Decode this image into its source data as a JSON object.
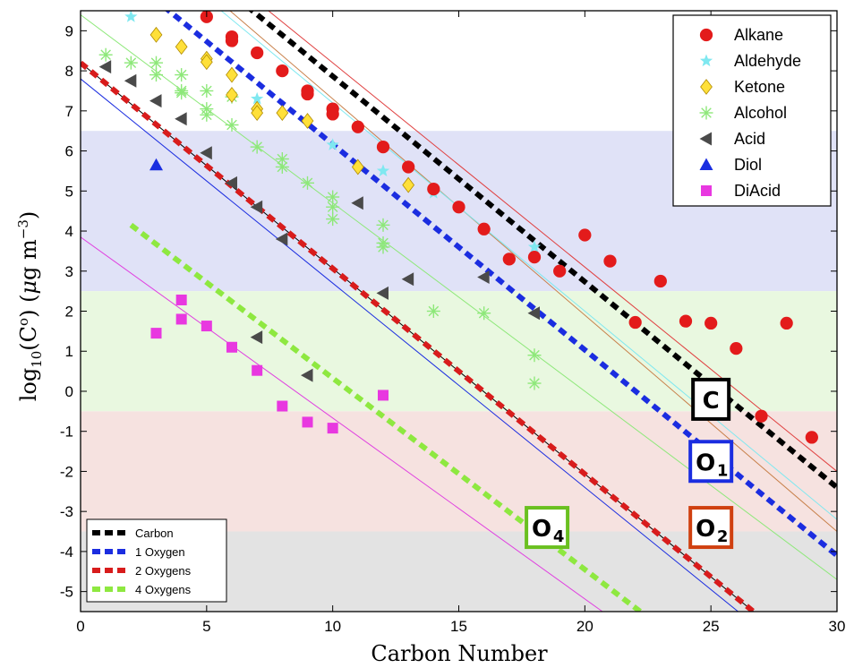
{
  "chart_data": {
    "type": "scatter",
    "xlabel": "Carbon Number",
    "ylabel_parts": {
      "pre": "log",
      "sub": "10",
      "mid": "(C",
      "sup": "o",
      "post": ") (",
      "mu": "μ",
      "unit": "g m",
      "exp": "−3",
      "close": ")"
    },
    "xlim": [
      0,
      30
    ],
    "ylim": [
      -5.5,
      9.5
    ],
    "xticks": [
      0,
      5,
      10,
      15,
      20,
      25,
      30
    ],
    "yticks": [
      -5,
      -4,
      -3,
      -2,
      -1,
      0,
      1,
      2,
      3,
      4,
      5,
      6,
      7,
      8,
      9
    ],
    "ytick_labels": [
      "-5",
      "-4",
      "-3",
      "-2",
      "-1",
      "0",
      "1",
      "2",
      "3",
      "4",
      "5",
      "6",
      "7",
      "8",
      "9"
    ],
    "bands": [
      {
        "y0": 2.5,
        "y1": 6.5,
        "color": "#e0e2f7"
      },
      {
        "y0": -0.5,
        "y1": 2.5,
        "color": "#e9f8e0"
      },
      {
        "y0": -3.5,
        "y1": -0.5,
        "color": "#f6e2e0"
      },
      {
        "y0": -5.5,
        "y1": -3.5,
        "color": "#e3e3e3"
      }
    ],
    "series": [
      {
        "name": "Alkane",
        "marker": "circle",
        "color": "#e31b1b",
        "points": [
          [
            5,
            9.35
          ],
          [
            6,
            8.85
          ],
          [
            6,
            8.75
          ],
          [
            7,
            8.45
          ],
          [
            8,
            8.0
          ],
          [
            9,
            7.5
          ],
          [
            9,
            7.42
          ],
          [
            10,
            7.05
          ],
          [
            10,
            6.92
          ],
          [
            11,
            6.6
          ],
          [
            12,
            6.1
          ],
          [
            13,
            5.6
          ],
          [
            14,
            5.05
          ],
          [
            15,
            4.6
          ],
          [
            16,
            4.05
          ],
          [
            17,
            3.3
          ],
          [
            18,
            3.35
          ],
          [
            19,
            3.0
          ],
          [
            20,
            3.9
          ],
          [
            21,
            3.25
          ],
          [
            22,
            1.72
          ],
          [
            23,
            2.75
          ],
          [
            24,
            1.75
          ],
          [
            25,
            1.7
          ],
          [
            26,
            1.07
          ],
          [
            27,
            -0.62
          ],
          [
            28,
            1.7
          ],
          [
            29,
            -1.15
          ]
        ]
      },
      {
        "name": "Aldehyde",
        "marker": "star",
        "color": "#7fe8f0",
        "points": [
          [
            2,
            9.35
          ],
          [
            7,
            7.3
          ],
          [
            10,
            6.15
          ],
          [
            12,
            5.5
          ],
          [
            14,
            4.95
          ],
          [
            18,
            3.6
          ]
        ]
      },
      {
        "name": "Ketone",
        "marker": "diamond",
        "color": "#ffe03a",
        "points": [
          [
            3,
            8.9
          ],
          [
            4,
            8.6
          ],
          [
            5,
            8.3
          ],
          [
            5,
            8.22
          ],
          [
            6,
            7.9
          ],
          [
            6,
            7.4
          ],
          [
            7,
            7.05
          ],
          [
            7,
            6.95
          ],
          [
            8,
            6.95
          ],
          [
            9,
            6.75
          ],
          [
            11,
            5.6
          ],
          [
            13,
            5.15
          ]
        ]
      },
      {
        "name": "Alcohol",
        "marker": "asterisk",
        "color": "#8ee87a",
        "points": [
          [
            1,
            8.4
          ],
          [
            2,
            8.2
          ],
          [
            3,
            8.2
          ],
          [
            3,
            7.9
          ],
          [
            4,
            7.9
          ],
          [
            4,
            7.5
          ],
          [
            4,
            7.45
          ],
          [
            5,
            7.5
          ],
          [
            5,
            7.05
          ],
          [
            5,
            6.9
          ],
          [
            6,
            7.35
          ],
          [
            6,
            6.65
          ],
          [
            7,
            6.1
          ],
          [
            8,
            5.8
          ],
          [
            8,
            5.6
          ],
          [
            9,
            5.2
          ],
          [
            10,
            4.85
          ],
          [
            10,
            4.6
          ],
          [
            10,
            4.3
          ],
          [
            12,
            4.15
          ],
          [
            12,
            3.7
          ],
          [
            12,
            3.6
          ],
          [
            14,
            2.0
          ],
          [
            16,
            1.95
          ],
          [
            18,
            0.9
          ],
          [
            18,
            0.2
          ]
        ]
      },
      {
        "name": "Acid",
        "marker": "triangle-left",
        "color": "#4a4a4a",
        "points": [
          [
            1,
            8.1
          ],
          [
            2,
            7.75
          ],
          [
            3,
            7.25
          ],
          [
            4,
            6.8
          ],
          [
            5,
            5.95
          ],
          [
            6,
            5.2
          ],
          [
            7,
            4.6
          ],
          [
            8,
            3.8
          ],
          [
            11,
            4.7
          ],
          [
            12,
            2.45
          ],
          [
            13,
            2.8
          ],
          [
            16,
            2.85
          ],
          [
            18,
            1.95
          ],
          [
            7,
            1.35
          ],
          [
            9,
            0.4
          ]
        ]
      },
      {
        "name": "Diol",
        "marker": "triangle-up",
        "color": "#1a2ee0",
        "points": [
          [
            3,
            5.65
          ]
        ]
      },
      {
        "name": "DiAcid",
        "marker": "square",
        "color": "#e838e0",
        "points": [
          [
            3,
            1.45
          ],
          [
            4,
            2.28
          ],
          [
            4,
            1.8
          ],
          [
            5,
            1.63
          ],
          [
            6,
            1.1
          ],
          [
            7,
            0.52
          ],
          [
            8,
            -0.37
          ],
          [
            9,
            -0.77
          ],
          [
            10,
            -0.92
          ],
          [
            12,
            -0.1
          ]
        ]
      }
    ],
    "fit_lines": [
      {
        "name": "Carbon",
        "color": "#000000",
        "dashed": true,
        "p1": [
          0,
          13.0
        ],
        "p2": [
          30,
          -2.4
        ]
      },
      {
        "name": "1 Oxygen",
        "color": "#1b2de0",
        "dashed": true,
        "p1": [
          0,
          11.3
        ],
        "p2": [
          30,
          -4.1
        ]
      },
      {
        "name": "2 Oxygens",
        "color": "#d81c1c",
        "dashed": true,
        "p1": [
          0,
          8.2
        ],
        "p2": [
          30,
          -7.2
        ]
      },
      {
        "name": "4 Oxygens",
        "color": "#8ee840",
        "dashed": true,
        "p1": [
          2,
          4.15
        ],
        "p2": [
          22.2,
          -5.5
        ]
      },
      {
        "name": "",
        "color": "#e04040",
        "dashed": false,
        "p1": [
          0,
          13.3
        ],
        "p2": [
          30,
          -2.0
        ]
      },
      {
        "name": "",
        "color": "#c8804a",
        "dashed": false,
        "p1": [
          0,
          12.7
        ],
        "p2": [
          30,
          -3.5
        ]
      },
      {
        "name": "",
        "color": "#80e8f0",
        "dashed": false,
        "p1": [
          0,
          12.4
        ],
        "p2": [
          30,
          -3.2
        ]
      },
      {
        "name": "",
        "color": "#8ee87a",
        "dashed": false,
        "p1": [
          0,
          9.4
        ],
        "p2": [
          30,
          -4.7
        ]
      },
      {
        "name": "",
        "color": "#000000",
        "dashed": false,
        "p1": [
          0,
          8.2
        ],
        "p2": [
          30,
          -7.2
        ]
      },
      {
        "name": "",
        "color": "#1b2de0",
        "dashed": false,
        "p1": [
          0,
          7.8
        ],
        "p2": [
          30,
          -7.5
        ]
      },
      {
        "name": "",
        "color": "#e040e0",
        "dashed": false,
        "p1": [
          0,
          3.85
        ],
        "p2": [
          20.7,
          -5.5
        ]
      }
    ],
    "tags": [
      {
        "main": "C",
        "sub": "",
        "color": "#000000",
        "x": 25.0,
        "y": -0.2
      },
      {
        "main": "O",
        "sub": "1",
        "color": "#1b2de0",
        "x": 25.0,
        "y": -1.75
      },
      {
        "main": "O",
        "sub": "2",
        "color": "#d04010",
        "x": 25.0,
        "y": -3.4
      },
      {
        "main": "O",
        "sub": "4",
        "color": "#6ac020",
        "x": 18.5,
        "y": -3.4
      }
    ],
    "legend_markers": {
      "position": "top-right",
      "entries": [
        "Alkane",
        "Aldehyde",
        "Ketone",
        "Alcohol",
        "Acid",
        "Diol",
        "DiAcid"
      ]
    },
    "legend_lines": {
      "position": "bottom-left",
      "entries": [
        "Carbon",
        "1 Oxygen",
        "2 Oxygens",
        "4 Oxygens"
      ]
    }
  }
}
